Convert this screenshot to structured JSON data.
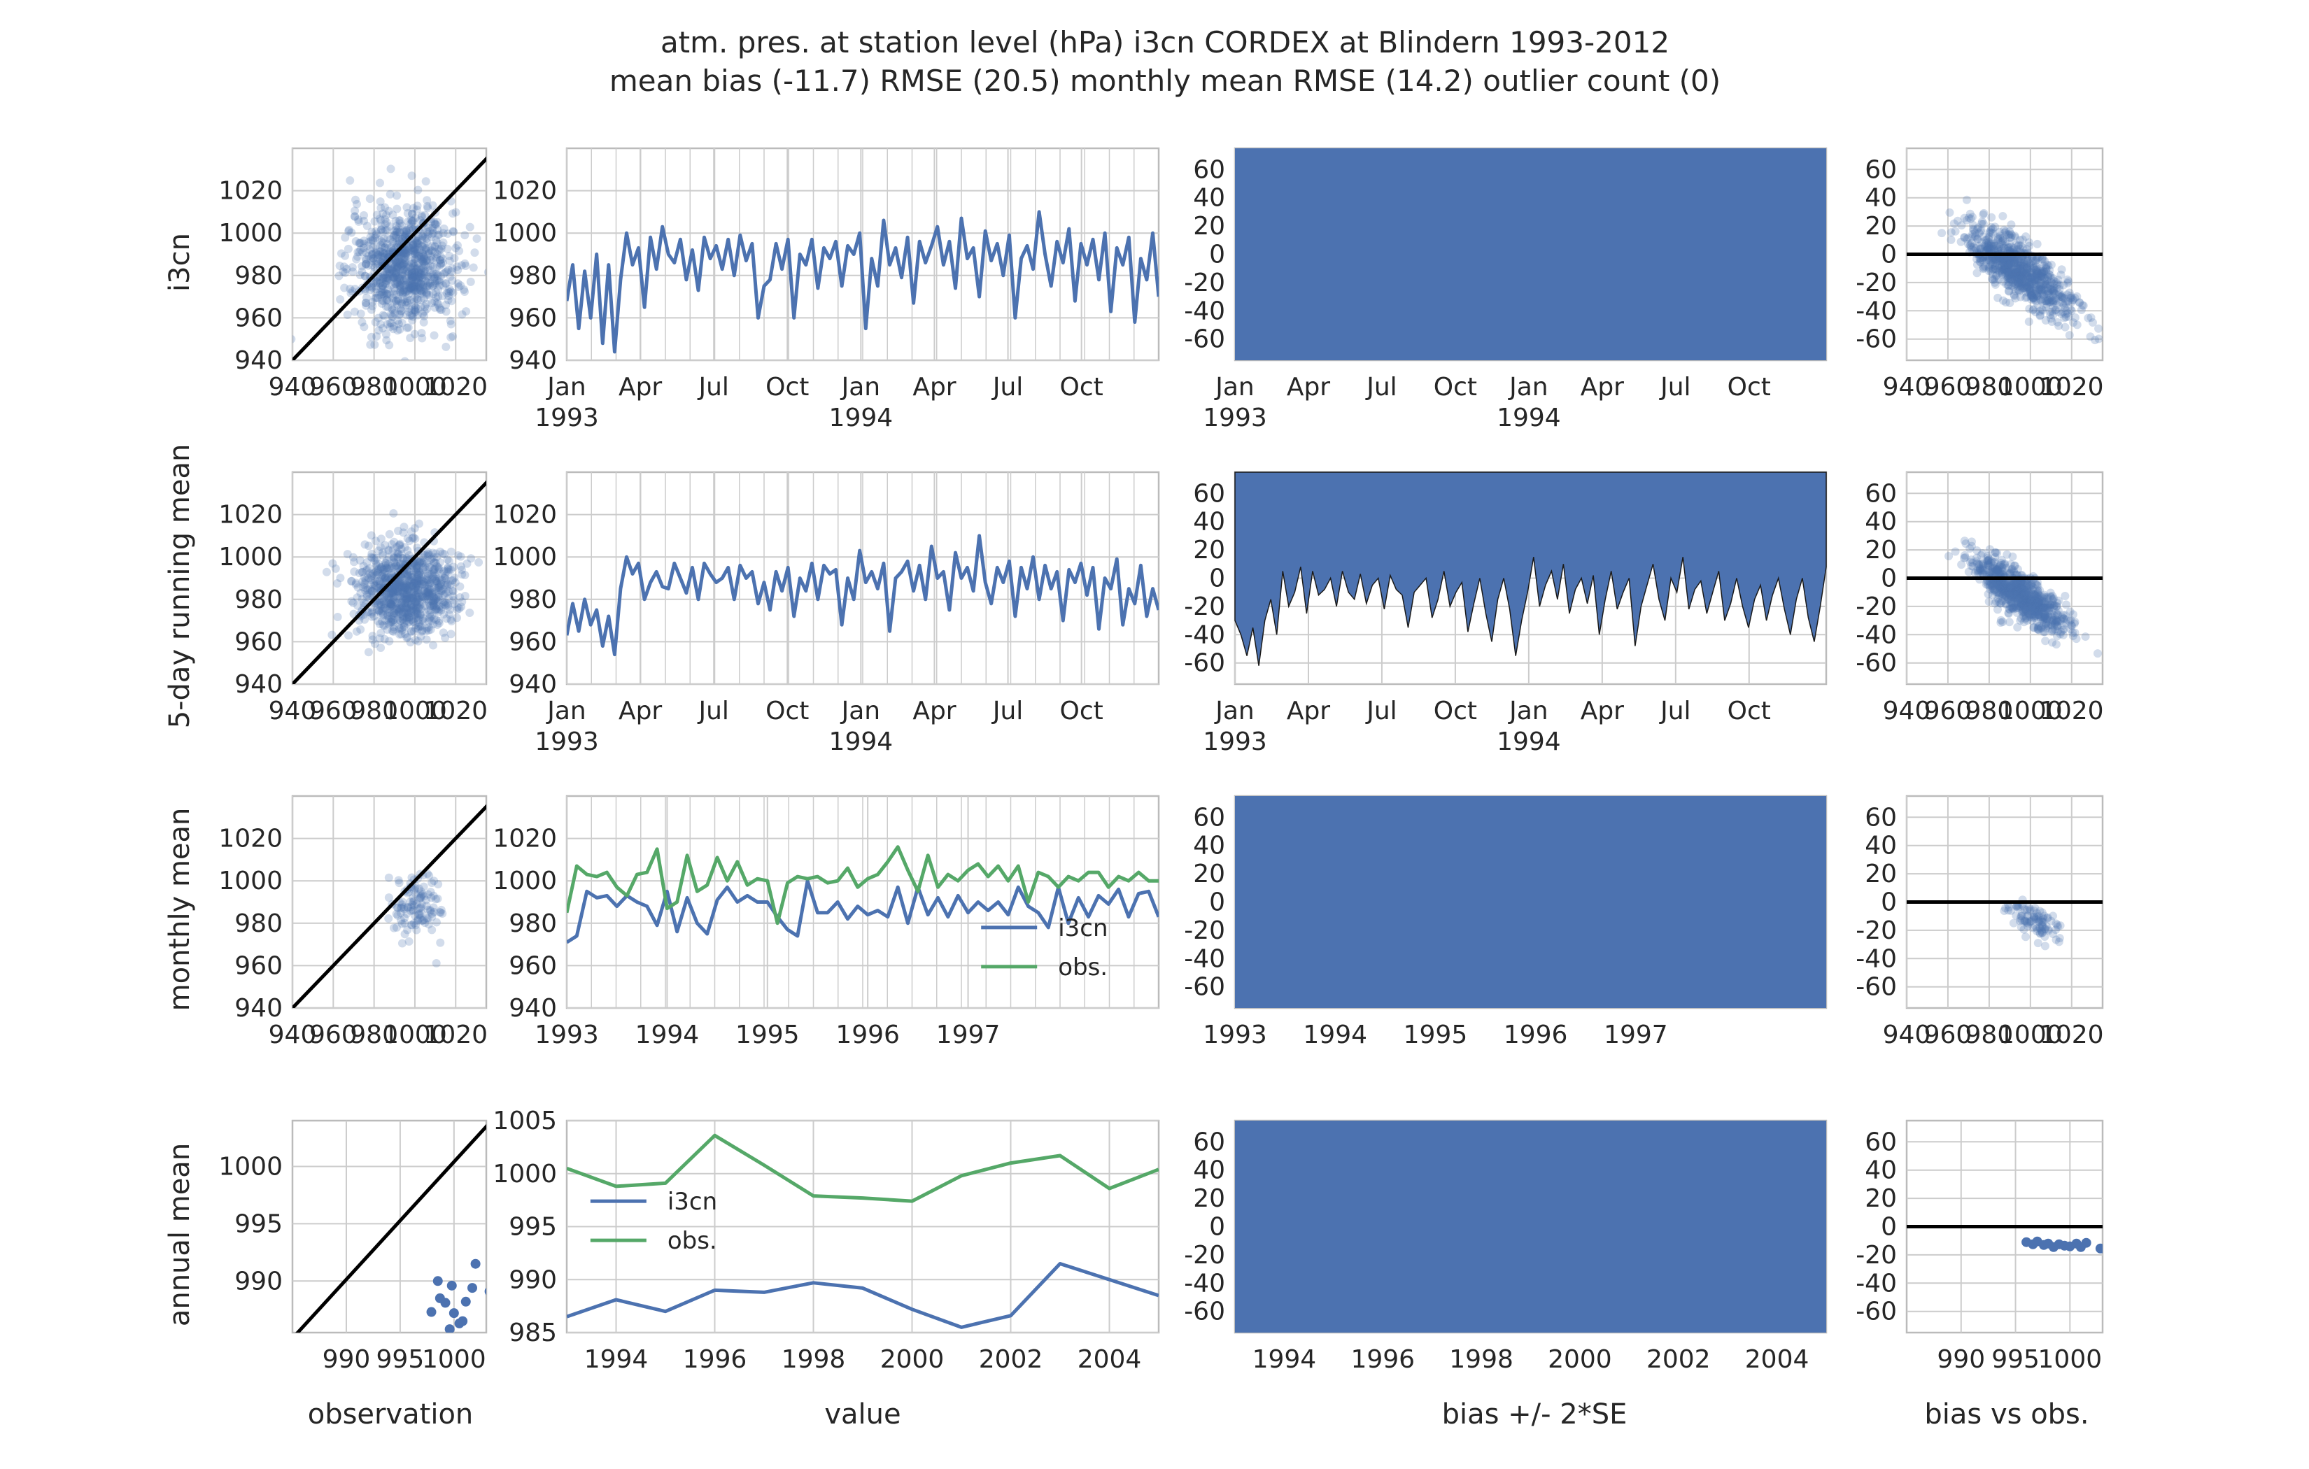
{
  "title": {
    "line1": "atm. pres. at station level (hPa) i3cn CORDEX at Blindern 1993-2012",
    "line2": "mean bias (-11.7) RMSE (20.5) monthly mean RMSE (14.2) outlier count (0)"
  },
  "colors": {
    "model": "#4c72b0",
    "obs": "#55a868",
    "ref": "#000000",
    "grid": "#cccccc",
    "frame": "#bbbbbb"
  },
  "row_labels": [
    "i3cn",
    "5-day running mean",
    "monthly mean",
    "annual mean"
  ],
  "col_labels": [
    "observation",
    "value",
    "bias +/- 2*SE",
    "bias vs obs."
  ],
  "legend": {
    "model": "i3cn",
    "obs": "obs."
  },
  "chart_data": [
    {
      "type": "scatter",
      "panel": "daily-obs-vs-model",
      "xlim": [
        940,
        1035
      ],
      "ylim": [
        940,
        1040
      ],
      "yticks": [
        940,
        960,
        980,
        1000,
        1020
      ],
      "xticks": [
        940,
        960,
        980,
        1000,
        1020
      ],
      "cloud": {
        "center_x": 995,
        "center_y": 984,
        "sd_x": 13,
        "sd_y": 14,
        "n": 900
      },
      "reference_line": "y = x"
    },
    {
      "type": "line",
      "panel": "daily-timeseries",
      "ylim": [
        940,
        1040
      ],
      "yticks": [
        940,
        960,
        980,
        1000,
        1020
      ],
      "xticks": [
        "Jan\n1993",
        "Apr",
        "Jul",
        "Oct",
        "Jan\n1994",
        "Apr",
        "Jul",
        "Oct"
      ],
      "values": [
        968,
        985,
        955,
        982,
        960,
        990,
        948,
        985,
        944,
        978,
        1000,
        985,
        993,
        965,
        998,
        983,
        1003,
        990,
        986,
        997,
        978,
        992,
        973,
        998,
        988,
        994,
        983,
        997,
        980,
        999,
        987,
        995,
        960,
        975,
        978,
        995,
        983,
        997,
        960,
        990,
        985,
        997,
        974,
        993,
        988,
        996,
        975,
        994,
        990,
        1000,
        955,
        988,
        975,
        1006,
        985,
        993,
        979,
        998,
        967,
        996,
        986,
        994,
        1003,
        985,
        996,
        974,
        1007,
        988,
        993,
        970,
        1001,
        987,
        995,
        980,
        999,
        960,
        988,
        994,
        983,
        1010,
        990,
        975,
        996,
        986,
        1002,
        968,
        995,
        985,
        997,
        978,
        1000,
        963,
        993,
        985,
        998,
        958,
        988,
        978,
        1000,
        970
      ]
    },
    {
      "type": "area",
      "panel": "daily-bias",
      "ylim": [
        -75,
        75
      ],
      "yticks": [
        -60,
        -40,
        -20,
        0,
        20,
        40,
        60
      ],
      "xticks": [
        "Jan\n1993",
        "Apr",
        "Jul",
        "Oct",
        "Jan\n1994",
        "Apr",
        "Jul",
        "Oct"
      ],
      "band": [
        -75,
        75
      ]
    },
    {
      "type": "scatter",
      "panel": "daily-bias-vs-obs",
      "xlim": [
        940,
        1035
      ],
      "ylim": [
        -75,
        75
      ],
      "yticks": [
        -60,
        -40,
        -20,
        0,
        20,
        40,
        60
      ],
      "xticks": [
        940,
        960,
        980,
        1000,
        1020
      ],
      "cloud": {
        "center_x": 995,
        "center_y": -11.7,
        "slope": -1.0,
        "sd_x": 13,
        "sd_y": 10,
        "n": 800
      },
      "reference_line": "y = 0"
    },
    {
      "type": "scatter",
      "panel": "running-obs-vs-model",
      "xlim": [
        940,
        1035
      ],
      "ylim": [
        940,
        1040
      ],
      "yticks": [
        940,
        960,
        980,
        1000,
        1020
      ],
      "xticks": [
        940,
        960,
        980,
        1000,
        1020
      ],
      "cloud": {
        "center_x": 995,
        "center_y": 984,
        "sd_x": 12,
        "sd_y": 11,
        "n": 900
      },
      "reference_line": "y = x"
    },
    {
      "type": "line",
      "panel": "running-timeseries",
      "ylim": [
        940,
        1040
      ],
      "yticks": [
        940,
        960,
        980,
        1000,
        1020
      ],
      "xticks": [
        "Jan\n1993",
        "Apr",
        "Jul",
        "Oct",
        "Jan\n1994",
        "Apr",
        "Jul",
        "Oct"
      ],
      "values": [
        963,
        978,
        965,
        980,
        968,
        975,
        958,
        972,
        954,
        985,
        1000,
        992,
        997,
        980,
        988,
        993,
        986,
        985,
        997,
        990,
        983,
        995,
        980,
        997,
        992,
        988,
        990,
        995,
        980,
        996,
        990,
        993,
        978,
        988,
        975,
        993,
        984,
        995,
        972,
        990,
        984,
        997,
        980,
        996,
        992,
        994,
        968,
        990,
        980,
        1003,
        988,
        993,
        985,
        997,
        965,
        990,
        993,
        998,
        984,
        996,
        980,
        1005,
        990,
        993,
        975,
        1002,
        990,
        995,
        984,
        1010,
        988,
        978,
        995,
        988,
        998,
        972,
        995,
        985,
        1000,
        980,
        996,
        985,
        993,
        970,
        994,
        988,
        997,
        982,
        995,
        966,
        990,
        985,
        999,
        968,
        985,
        978,
        996,
        972,
        985,
        975
      ]
    },
    {
      "type": "area",
      "panel": "running-bias",
      "ylim": [
        -75,
        75
      ],
      "yticks": [
        -60,
        -40,
        -20,
        0,
        20,
        40,
        60
      ],
      "xticks": [
        "Jan\n1993",
        "Apr",
        "Jul",
        "Oct",
        "Jan\n1994",
        "Apr",
        "Jul",
        "Oct"
      ],
      "lower_edge": [
        -30,
        -40,
        -55,
        -35,
        -62,
        -30,
        -15,
        -40,
        5,
        -20,
        -10,
        8,
        -25,
        5,
        -12,
        -8,
        0,
        -20,
        5,
        -10,
        -15,
        3,
        -18,
        -5,
        0,
        -22,
        2,
        -8,
        -12,
        -35,
        -10,
        -5,
        0,
        -28,
        -15,
        5,
        -20,
        -10,
        -3,
        -38,
        -18,
        0,
        -25,
        -45,
        -15,
        0,
        -22,
        -55,
        -30,
        -10,
        15,
        -20,
        -5,
        5,
        -15,
        10,
        -25,
        -8,
        0,
        -18,
        2,
        -40,
        -15,
        5,
        -22,
        -10,
        0,
        -48,
        -20,
        -5,
        10,
        -15,
        -30,
        0,
        -10,
        15,
        -22,
        -8,
        -2,
        -25,
        -10,
        5,
        -30,
        -18,
        0,
        -20,
        -35,
        -15,
        -5,
        -30,
        -12,
        0,
        -22,
        -40,
        -15,
        0,
        -28,
        -45,
        -20,
        8
      ],
      "upper": 75
    },
    {
      "type": "scatter",
      "panel": "running-bias-vs-obs",
      "xlim": [
        940,
        1035
      ],
      "ylim": [
        -75,
        75
      ],
      "yticks": [
        -60,
        -40,
        -20,
        0,
        20,
        40,
        60
      ],
      "xticks": [
        940,
        960,
        980,
        1000,
        1020
      ],
      "cloud": {
        "center_x": 995,
        "center_y": -11.7,
        "slope": -0.9,
        "sd_x": 11,
        "sd_y": 8,
        "n": 800
      },
      "reference_line": "y = 0"
    },
    {
      "type": "scatter",
      "panel": "monthly-obs-vs-model",
      "xlim": [
        940,
        1035
      ],
      "ylim": [
        940,
        1040
      ],
      "yticks": [
        940,
        960,
        980,
        1000,
        1020
      ],
      "xticks": [
        940,
        960,
        980,
        1000,
        1020
      ],
      "cloud": {
        "center_x": 1000,
        "center_y": 988,
        "sd_x": 6,
        "sd_y": 7,
        "n": 120
      },
      "reference_line": "y = x"
    },
    {
      "type": "line",
      "panel": "monthly-timeseries",
      "ylim": [
        940,
        1040
      ],
      "yticks": [
        940,
        960,
        980,
        1000,
        1020
      ],
      "xticks": [
        "1993",
        "1994",
        "1995",
        "1996",
        "1997"
      ],
      "series": [
        {
          "name": "i3cn",
          "values": [
            971,
            974,
            995,
            992,
            993,
            988,
            993,
            990,
            988,
            979,
            995,
            976,
            992,
            980,
            975,
            991,
            997,
            990,
            993,
            990,
            990,
            983,
            977,
            974,
            1000,
            985,
            985,
            990,
            982,
            988,
            984,
            986,
            983,
            997,
            980,
            997,
            984,
            992,
            983,
            993,
            985,
            990,
            986,
            990,
            984,
            997,
            988,
            985,
            978,
            997,
            980,
            992,
            983,
            993,
            989,
            996,
            983,
            994,
            995,
            983
          ]
        },
        {
          "name": "obs.",
          "values": [
            985,
            1007,
            1003,
            1002,
            1004,
            997,
            993,
            1003,
            1004,
            1015,
            987,
            990,
            1012,
            995,
            998,
            1011,
            1000,
            1009,
            998,
            1001,
            1000,
            980,
            999,
            1002,
            1001,
            1002,
            999,
            1000,
            1006,
            997,
            1001,
            1003,
            1009,
            1016,
            1005,
            995,
            1012,
            997,
            1003,
            1000,
            1005,
            1008,
            1002,
            1007,
            1000,
            1007,
            990,
            1004,
            1002,
            997,
            1002,
            1000,
            1004,
            1004,
            997,
            1002,
            1000,
            1004,
            1000,
            1000
          ]
        }
      ]
    },
    {
      "type": "area",
      "panel": "monthly-bias",
      "ylim": [
        -75,
        75
      ],
      "yticks": [
        -60,
        -40,
        -20,
        0,
        20,
        40,
        60
      ],
      "xticks": [
        "1993",
        "1994",
        "1995",
        "1996",
        "1997"
      ],
      "band": [
        -75,
        75
      ]
    },
    {
      "type": "scatter",
      "panel": "monthly-bias-vs-obs",
      "xlim": [
        940,
        1035
      ],
      "ylim": [
        -75,
        75
      ],
      "yticks": [
        -60,
        -40,
        -20,
        0,
        20,
        40,
        60
      ],
      "xticks": [
        940,
        960,
        980,
        1000,
        1020
      ],
      "cloud": {
        "center_x": 1002,
        "center_y": -12,
        "slope": -0.8,
        "sd_x": 6,
        "sd_y": 6,
        "n": 100
      },
      "reference_line": "y = 0"
    },
    {
      "type": "scatter",
      "panel": "annual-obs-vs-model",
      "xlim": [
        985,
        1003
      ],
      "ylim": [
        985.5,
        1004
      ],
      "yticks": [
        990,
        995,
        1000
      ],
      "xticks": [
        990,
        995,
        1000
      ],
      "points": [
        [
          999.8,
          989.6
        ],
        [
          1000.0,
          987.2
        ],
        [
          999.2,
          988.1
        ],
        [
          1001.7,
          989.4
        ],
        [
          998.7,
          988.5
        ],
        [
          1000.8,
          986.5
        ],
        [
          997.9,
          987.3
        ],
        [
          998.5,
          990.0
        ],
        [
          1001.1,
          988.2
        ],
        [
          1003.3,
          989.1
        ],
        [
          999.6,
          985.8
        ],
        [
          1002.0,
          991.5
        ],
        [
          1000.5,
          986.3
        ]
      ],
      "reference_line": "y = x"
    },
    {
      "type": "line",
      "panel": "annual-timeseries",
      "ylim": [
        985,
        1005
      ],
      "yticks": [
        985,
        990,
        995,
        1000,
        1005
      ],
      "x": [
        1993,
        1994,
        1995,
        1996,
        1997,
        1998,
        1999,
        2000,
        2001,
        2002,
        2003,
        2004,
        2005
      ],
      "xticks": [
        "1994",
        "1996",
        "1998",
        "2000",
        "2002",
        "2004"
      ],
      "series": [
        {
          "name": "i3cn",
          "values": [
            986.5,
            988.1,
            987.0,
            989.0,
            988.8,
            989.7,
            989.2,
            987.2,
            985.5,
            986.6,
            991.5,
            990.0,
            988.5
          ]
        },
        {
          "name": "obs.",
          "values": [
            1000.5,
            998.8,
            999.1,
            1003.6,
            1000.8,
            997.9,
            997.7,
            997.4,
            999.8,
            1001.0,
            1001.7,
            998.6,
            1000.4
          ]
        }
      ]
    },
    {
      "type": "area",
      "panel": "annual-bias",
      "ylim": [
        -75,
        75
      ],
      "yticks": [
        -60,
        -40,
        -20,
        0,
        20,
        40,
        60
      ],
      "xticks": [
        "1994",
        "1996",
        "1998",
        "2000",
        "2002",
        "2004"
      ],
      "band": [
        -75,
        75
      ]
    },
    {
      "type": "scatter",
      "panel": "annual-bias-vs-obs",
      "xlim": [
        985,
        1003
      ],
      "ylim": [
        -75,
        75
      ],
      "yticks": [
        -60,
        -40,
        -20,
        0,
        20,
        40,
        60
      ],
      "xticks": [
        990,
        995,
        1000
      ],
      "points": [
        [
          996.0,
          -11.0
        ],
        [
          996.6,
          -12.5
        ],
        [
          997.0,
          -10.5
        ],
        [
          997.6,
          -13.0
        ],
        [
          998.0,
          -12.0
        ],
        [
          998.5,
          -14.5
        ],
        [
          999.0,
          -12.5
        ],
        [
          999.5,
          -13.5
        ],
        [
          1000.0,
          -14.0
        ],
        [
          1000.6,
          -12.0
        ],
        [
          1001.0,
          -14.5
        ],
        [
          1001.5,
          -11.5
        ],
        [
          1002.8,
          -15.5
        ]
      ],
      "reference_line": "y = 0"
    }
  ]
}
